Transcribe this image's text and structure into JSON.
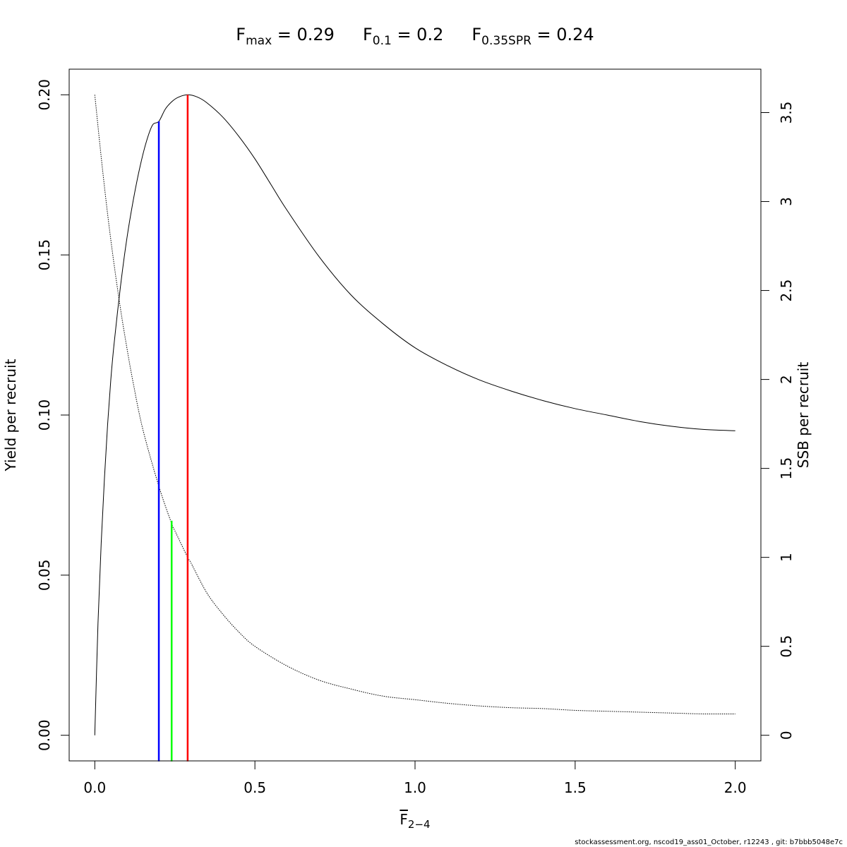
{
  "title": {
    "parts": [
      {
        "main": "F",
        "sub": "max",
        "rest": " = 0.29"
      },
      {
        "main": "F",
        "sub": "0.1",
        "rest": " = 0.2"
      },
      {
        "main": "F",
        "sub": "0.35SPR",
        "rest": " = 0.24"
      }
    ]
  },
  "footer": "stockassessment.org, nscod19_ass01_October, r12243 , git: b7bbb5048e7c",
  "chart_data": {
    "type": "line",
    "xlabel": {
      "main": "F",
      "overline": true,
      "sub": "2−4"
    },
    "ylabel_left": "Yield per recruit",
    "ylabel_right": "SSB per recruit",
    "xlim": [
      -0.08,
      2.08
    ],
    "ylim_left": [
      -0.008,
      0.208
    ],
    "ylim_right": [
      -0.144,
      3.744
    ],
    "x_ticks": [
      0,
      0.5,
      1,
      1.5,
      2
    ],
    "x_tick_labels": [
      "0.0",
      "0.5",
      "1.0",
      "1.5",
      "2.0"
    ],
    "y_left_ticks": [
      0,
      0.05,
      0.1,
      0.15,
      0.2
    ],
    "y_left_tick_labels": [
      "0.00",
      "0.05",
      "0.10",
      "0.15",
      "0.20"
    ],
    "y_right_ticks": [
      0,
      0.5,
      1,
      1.5,
      2,
      2.5,
      3,
      3.5
    ],
    "y_right_tick_labels": [
      "0",
      "0.5",
      "1",
      "1.5",
      "2",
      "2.5",
      "3",
      "3.5"
    ],
    "grid": false,
    "series": [
      {
        "axis": "left",
        "style": "solid",
        "color": "#000000",
        "x": [
          0,
          0.01,
          0.02,
          0.03,
          0.04,
          0.05,
          0.06,
          0.08,
          0.1,
          0.12,
          0.14,
          0.16,
          0.18,
          0.2,
          0.22,
          0.24,
          0.26,
          0.29,
          0.32,
          0.35,
          0.4,
          0.45,
          0.5,
          0.55,
          0.6,
          0.7,
          0.8,
          0.9,
          1.0,
          1.1,
          1.2,
          1.3,
          1.4,
          1.5,
          1.6,
          1.7,
          1.8,
          1.9,
          2.0
        ],
        "values": [
          0,
          0.035,
          0.06,
          0.08,
          0.097,
          0.111,
          0.122,
          0.14,
          0.155,
          0.167,
          0.177,
          0.185,
          0.1905,
          0.1917,
          0.1955,
          0.1978,
          0.1992,
          0.2,
          0.1993,
          0.1975,
          0.193,
          0.187,
          0.18,
          0.172,
          0.164,
          0.1495,
          0.1375,
          0.1285,
          0.121,
          0.1155,
          0.111,
          0.1075,
          0.1045,
          0.102,
          0.1,
          0.098,
          0.0965,
          0.0955,
          0.0951
        ]
      },
      {
        "axis": "right",
        "style": "dotted",
        "color": "#000000",
        "x": [
          0,
          0.02,
          0.04,
          0.06,
          0.08,
          0.1,
          0.12,
          0.15,
          0.2,
          0.24,
          0.25,
          0.29,
          0.3,
          0.35,
          0.4,
          0.45,
          0.5,
          0.6,
          0.7,
          0.8,
          0.9,
          1.0,
          1.1,
          1.2,
          1.3,
          1.4,
          1.5,
          1.6,
          1.7,
          1.8,
          1.9,
          2.0
        ],
        "values": [
          3.6,
          3.25,
          2.93,
          2.65,
          2.4,
          2.18,
          1.98,
          1.72,
          1.4,
          1.19,
          1.15,
          1.0,
          0.97,
          0.8,
          0.68,
          0.58,
          0.5,
          0.39,
          0.31,
          0.26,
          0.22,
          0.2,
          0.18,
          0.165,
          0.155,
          0.15,
          0.14,
          0.135,
          0.13,
          0.125,
          0.12,
          0.12
        ]
      }
    ],
    "reference_lines": [
      {
        "name": "F0.1",
        "x": 0.2,
        "y": 0.1917,
        "color": "#0000ff"
      },
      {
        "name": "F0.35SPR",
        "x": 0.24,
        "y": 0.067,
        "color": "#00ff00"
      },
      {
        "name": "Fmax",
        "x": 0.29,
        "y": 0.2,
        "color": "#ff0000"
      }
    ]
  }
}
